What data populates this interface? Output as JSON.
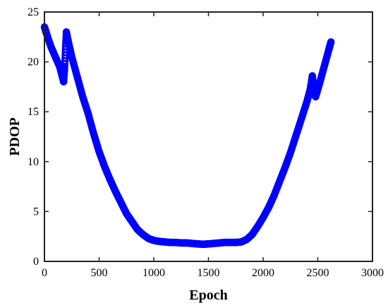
{
  "chart_data": {
    "type": "scatter",
    "xlabel": "Epoch",
    "ylabel": "PDOP",
    "xlim": [
      0,
      3000
    ],
    "ylim": [
      0,
      25
    ],
    "xticks": [
      0,
      500,
      1000,
      1500,
      2000,
      2500,
      3000
    ],
    "yticks": [
      0,
      5,
      10,
      15,
      20,
      25
    ],
    "grid": false,
    "legend": "none",
    "marker_color": "#0000ff",
    "series": [
      {
        "x": [
          0,
          20,
          60,
          100,
          140,
          175,
          185,
          200,
          215,
          250,
          300,
          350,
          400,
          450,
          500,
          550,
          600,
          650,
          700,
          750,
          800,
          850,
          900,
          950,
          1000,
          1050,
          1100,
          1150,
          1200,
          1250,
          1300,
          1350,
          1400,
          1450,
          1500,
          1550,
          1600,
          1650,
          1700,
          1750,
          1800,
          1850,
          1900,
          1950,
          2000,
          2050,
          2100,
          2150,
          2200,
          2250,
          2300,
          2350,
          2400,
          2430,
          2450,
          2465,
          2480,
          2520,
          2560,
          2600,
          2620
        ],
        "y": [
          23.5,
          22.8,
          21.5,
          20.5,
          19.5,
          18.0,
          19.5,
          23.0,
          22.2,
          20.5,
          18.5,
          16.5,
          14.8,
          12.8,
          11.0,
          9.5,
          8.2,
          7.0,
          5.9,
          4.8,
          4.0,
          3.2,
          2.7,
          2.3,
          2.1,
          2.0,
          1.95,
          1.9,
          1.9,
          1.85,
          1.85,
          1.8,
          1.75,
          1.72,
          1.75,
          1.8,
          1.85,
          1.9,
          1.9,
          1.9,
          1.95,
          2.2,
          2.7,
          3.5,
          4.4,
          5.4,
          6.6,
          8.0,
          9.4,
          10.9,
          12.6,
          14.3,
          16.0,
          17.2,
          18.6,
          17.0,
          16.5,
          18.0,
          19.6,
          21.2,
          22.0
        ]
      }
    ]
  }
}
